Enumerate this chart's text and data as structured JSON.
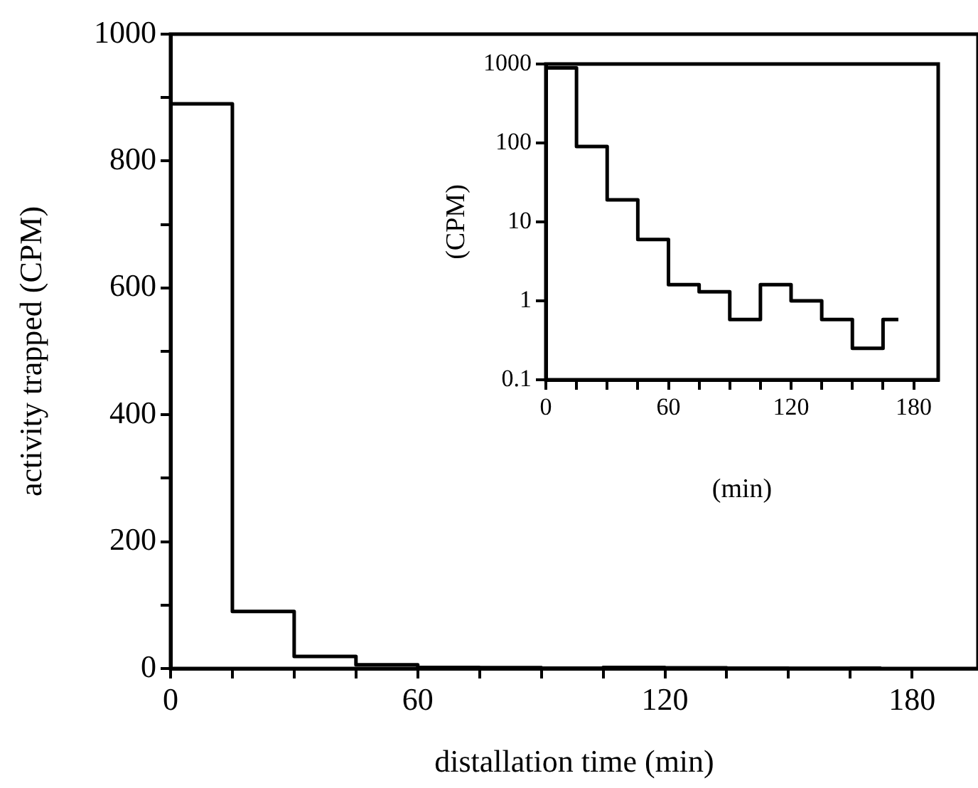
{
  "chart_data": [
    {
      "type": "step",
      "xlabel": "distallation time (min)",
      "ylabel": "activity trapped (CPM)",
      "x": [
        0,
        15,
        30,
        45,
        60,
        75,
        90,
        105,
        120,
        135,
        150,
        165,
        172.5
      ],
      "series": [
        {
          "color": "#000000",
          "values": [
            890,
            90,
            19,
            6,
            1.6,
            1.3,
            0.58,
            1.6,
            1,
            0.58,
            0.25,
            0.58,
            0.58
          ]
        }
      ],
      "xlim": [
        0,
        196
      ],
      "xticks": [
        0,
        {
          "value": 15,
          "label": null
        },
        {
          "value": 30,
          "label": null
        },
        {
          "value": 45,
          "label": null
        },
        60,
        {
          "value": 75,
          "label": null
        },
        {
          "value": 90,
          "label": null
        },
        {
          "value": 105,
          "label": null
        },
        120,
        {
          "value": 135,
          "label": null
        },
        {
          "value": 150,
          "label": null
        },
        {
          "value": 165,
          "label": null
        },
        180
      ],
      "ylim": [
        0,
        1000
      ],
      "yticks": [
        0,
        {
          "value": 100,
          "label": null
        },
        200,
        {
          "value": 300,
          "label": null
        },
        400,
        {
          "value": 500,
          "label": null
        },
        600,
        {
          "value": 700,
          "label": null
        },
        800,
        {
          "value": 900,
          "label": null
        },
        1000
      ],
      "grid": false,
      "legend": false
    },
    {
      "type": "step",
      "xlabel": "(min)",
      "ylabel": "(CPM)",
      "x": [
        0,
        15,
        30,
        45,
        60,
        75,
        90,
        105,
        120,
        135,
        150,
        165,
        172.5
      ],
      "series": [
        {
          "color": "#000000",
          "values": [
            890,
            90,
            19,
            6,
            1.6,
            1.3,
            0.58,
            1.6,
            1,
            0.58,
            0.25,
            0.58,
            0.58
          ]
        }
      ],
      "xlim": [
        0,
        192
      ],
      "xticks": [
        0,
        {
          "value": 15,
          "label": null
        },
        {
          "value": 30,
          "label": null
        },
        {
          "value": 45,
          "label": null
        },
        60,
        {
          "value": 75,
          "label": null
        },
        {
          "value": 90,
          "label": null
        },
        {
          "value": 105,
          "label": null
        },
        120,
        {
          "value": 135,
          "label": null
        },
        {
          "value": 150,
          "label": null
        },
        {
          "value": 165,
          "label": null
        },
        180
      ],
      "ylim": [
        0.1,
        1000
      ],
      "yticks": [
        0.1,
        1,
        10,
        100,
        1000
      ],
      "log": true,
      "grid": false,
      "legend": false
    }
  ]
}
